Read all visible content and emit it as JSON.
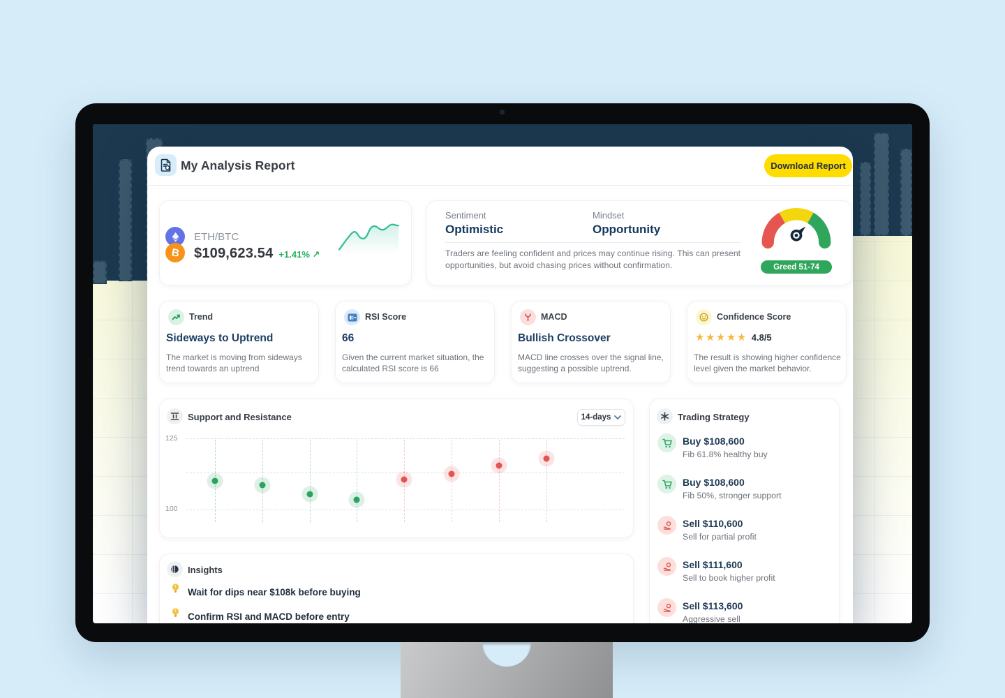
{
  "window": {
    "app_title": "My Analysis Report",
    "download_button": "Download Report"
  },
  "pair_card": {
    "pair": "ETH/BTC",
    "price": "$109,623.54",
    "change": "+1.41%",
    "change_arrow": "↗"
  },
  "sentiment_card": {
    "sentiment_label": "Sentiment",
    "sentiment_value": "Optimistic",
    "mindset_label": "Mindset",
    "mindset_value": "Opportunity",
    "description": "Traders are feeling confident and prices may continue rising. This can present opportunities, but avoid chasing prices without confirmation.",
    "gauge_badge": "Greed 51-74"
  },
  "metrics": [
    {
      "label": "Trend",
      "value": "Sideways to Uptrend",
      "description": "The market is moving from sideways trend towards an uptrend"
    },
    {
      "label": "RSI Score",
      "value": "66",
      "description": "Given the current market situation, the calculated RSI score is 66"
    },
    {
      "label": "MACD",
      "value": "Bullish Crossover",
      "description": "MACD line crosses over the signal line, suggesting a possible uptrend."
    },
    {
      "label": "Confidence Score",
      "stars": "★★★★★",
      "value": "4.8/5",
      "description": "The result is showing higher confidence level given the market behavior."
    }
  ],
  "support_resistance": {
    "title": "Support and Resistance",
    "range_selected": "14-days"
  },
  "chart_data": {
    "type": "scatter",
    "title": "Support and Resistance",
    "x_unit": "day",
    "x": [
      1,
      2,
      3,
      4,
      5,
      6,
      7,
      8
    ],
    "ylim": [
      96,
      127
    ],
    "yticks_labeled": [
      "125",
      "100"
    ],
    "grid": "dashed-horizontal",
    "legend": "none",
    "series": [
      {
        "name": "support",
        "color": "#2aa35f",
        "points": [
          {
            "x": 1,
            "y": 110
          },
          {
            "x": 2,
            "y": 108.5
          },
          {
            "x": 3,
            "y": 105.5
          },
          {
            "x": 4,
            "y": 103.5
          }
        ]
      },
      {
        "name": "resistance",
        "color": "#e45454",
        "points": [
          {
            "x": 5,
            "y": 110.5
          },
          {
            "x": 6,
            "y": 112.5
          },
          {
            "x": 7,
            "y": 115.5
          },
          {
            "x": 8,
            "y": 118
          }
        ]
      }
    ]
  },
  "strategy": {
    "title": "Trading Strategy",
    "items": [
      {
        "side": "buy",
        "title": "Buy $108,600",
        "subtitle": "Fib 61.8% healthy buy"
      },
      {
        "side": "buy",
        "title": "Buy $108,600",
        "subtitle": "Fib 50%, stronger support"
      },
      {
        "side": "sell",
        "title": "Sell $110,600",
        "subtitle": "Sell for partial profit"
      },
      {
        "side": "sell",
        "title": "Sell $111,600",
        "subtitle": "Sell to book higher profit"
      },
      {
        "side": "sell",
        "title": "Sell $113,600",
        "subtitle": "Aggressive sell"
      }
    ]
  },
  "insights": {
    "title": "Insights",
    "items": [
      "Wait for dips near $108k before buying",
      "Confirm RSI and MACD before entry"
    ]
  },
  "colors": {
    "accent_yellow": "#ffdc00",
    "navy_text": "#1c3f63",
    "buy_green": "#2aa35f",
    "sell_red": "#e4564f",
    "greed_badge": "#2fa65c",
    "gauge_red": "#e4564f",
    "gauge_yellow": "#f3d60e",
    "gauge_green": "#2fa65c",
    "desktop_navy": "#1c3950"
  }
}
